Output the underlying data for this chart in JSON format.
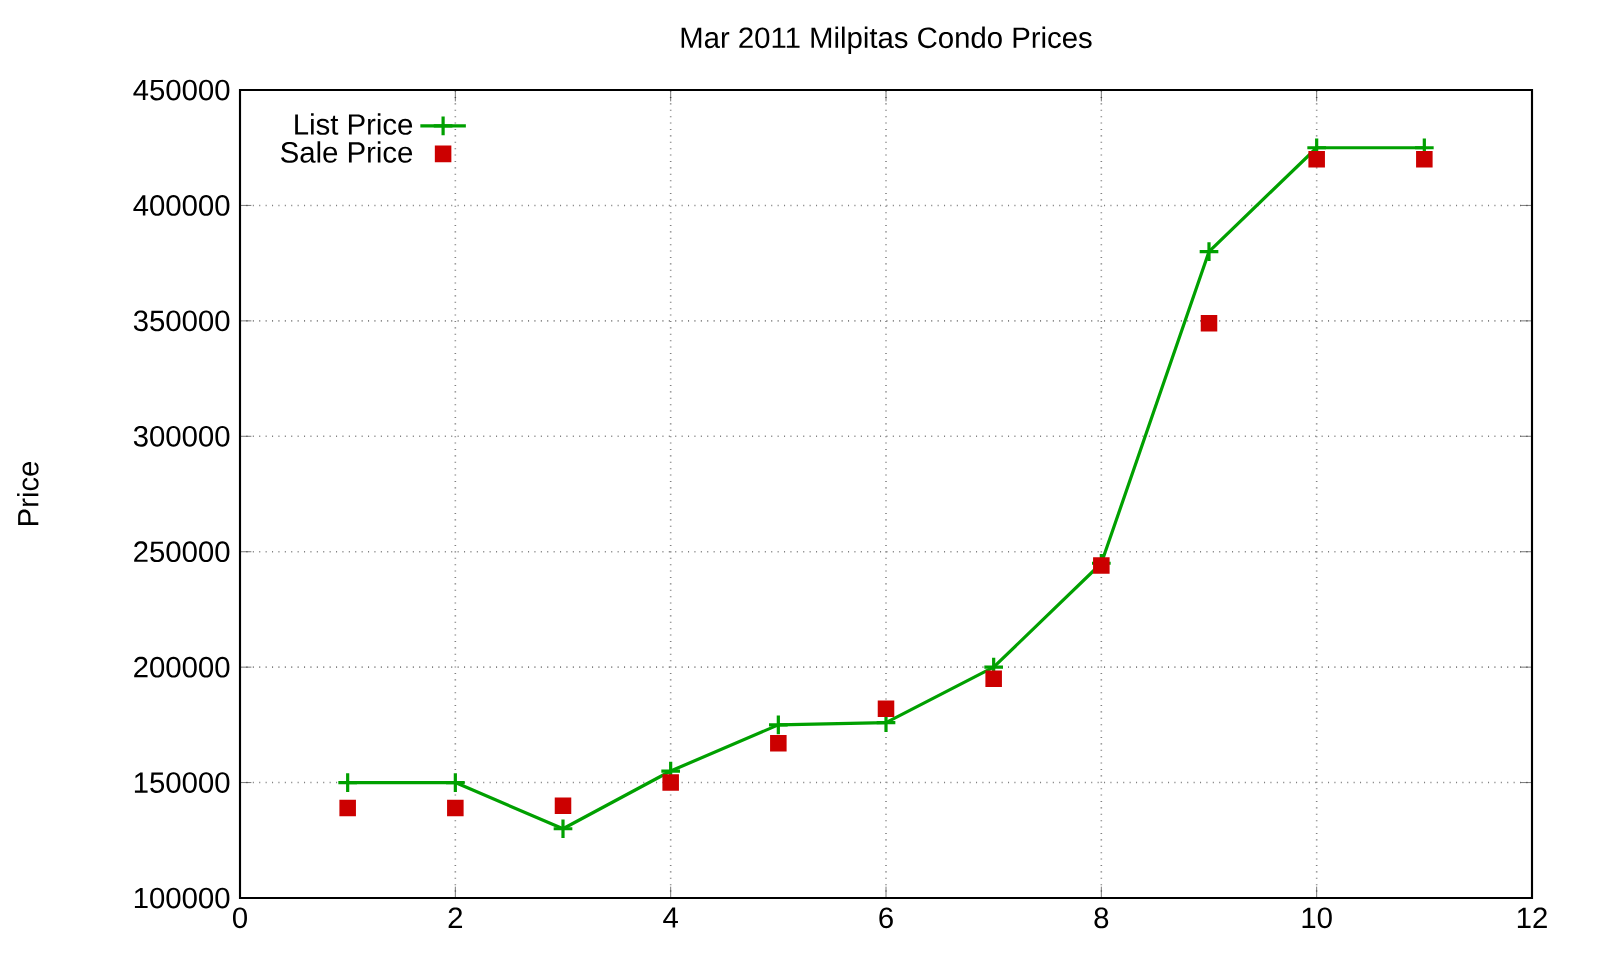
{
  "chart_data": {
    "type": "line",
    "title": "Mar 2011 Milpitas Condo Prices",
    "ylabel": "Price",
    "xlim": [
      0,
      12
    ],
    "xticks": [
      0,
      2,
      4,
      6,
      8,
      10,
      12
    ],
    "ylim": [
      100000,
      450000
    ],
    "yticks": [
      100000,
      150000,
      200000,
      250000,
      300000,
      350000,
      400000,
      450000
    ],
    "grid": true,
    "legend": "top left",
    "series": [
      {
        "name": "List Price",
        "marker": "cross",
        "color": "#00a000",
        "x": [
          1,
          2,
          3,
          4,
          5,
          6,
          7,
          8,
          9,
          10,
          11
        ],
        "values": [
          150000,
          150000,
          130000,
          155000,
          175000,
          176000,
          200000,
          245000,
          380000,
          425000,
          425000
        ]
      },
      {
        "name": "Sale Price",
        "type": "scatter",
        "marker": "square",
        "color": "#cc0000",
        "x": [
          1,
          2,
          3,
          4,
          5,
          6,
          7,
          8,
          9,
          10,
          11
        ],
        "values": [
          139000,
          139000,
          140000,
          150000,
          167000,
          182000,
          195000,
          244000,
          349000,
          420000,
          420000
        ]
      }
    ]
  }
}
